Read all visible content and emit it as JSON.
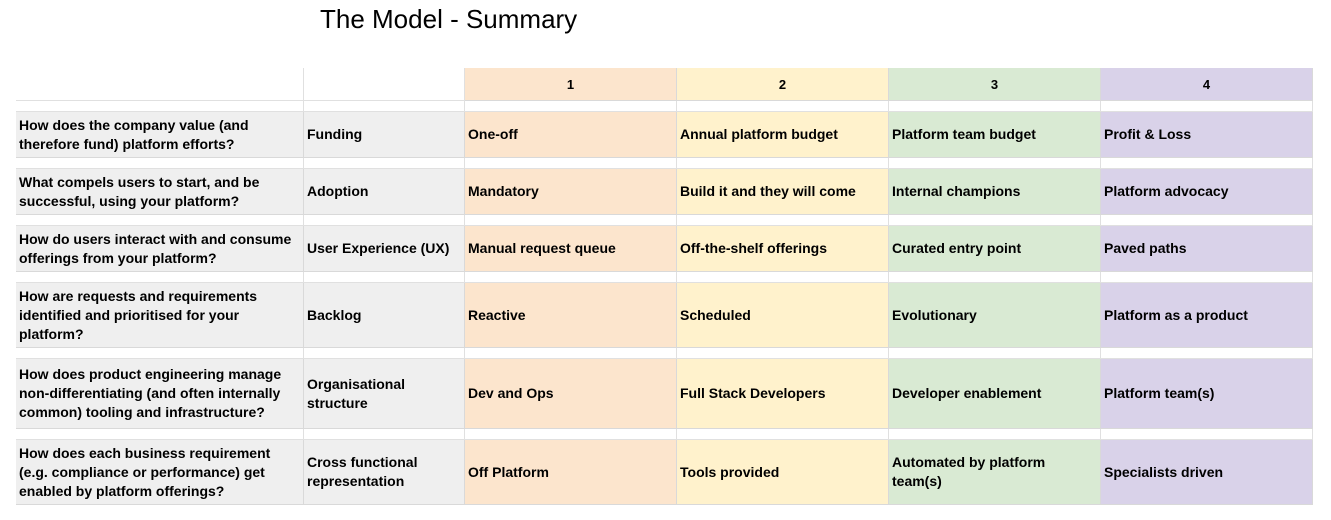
{
  "header": {
    "title": "The Model - Summary"
  },
  "table": {
    "columns": [
      "1",
      "2",
      "3",
      "4"
    ],
    "rows": [
      [
        "How does the company value (and therefore fund) platform efforts?",
        "Funding",
        "One-off",
        "Annual platform budget",
        "Platform team budget",
        "Profit & Loss"
      ],
      [
        "What compels users to start, and be successful, using your platform?",
        "Adoption",
        "Mandatory",
        "Build it and they will come",
        "Internal champions",
        "Platform advocacy"
      ],
      [
        "How do users interact with and consume offerings from your platform?",
        "User Experience (UX)",
        "Manual request queue",
        "Off-the-shelf offerings",
        "Curated entry point",
        "Paved paths"
      ],
      [
        "How are requests and requirements identified and prioritised for your platform?",
        "Backlog",
        "Reactive",
        "Scheduled",
        "Evolutionary",
        "Platform as a product"
      ],
      [
        "How does product engineering manage non-differentiating (and often internally common) tooling and infrastructure?",
        "Organisational structure",
        "Dev and Ops",
        "Full Stack Developers",
        "Developer enablement",
        "Platform team(s)"
      ],
      [
        "How does each business requirement (e.g. compliance or performance) get enabled by platform offerings?",
        "Cross functional representation",
        "Off Platform",
        "Tools provided",
        "Automated by platform team(s)",
        "Specialists driven"
      ]
    ]
  }
}
